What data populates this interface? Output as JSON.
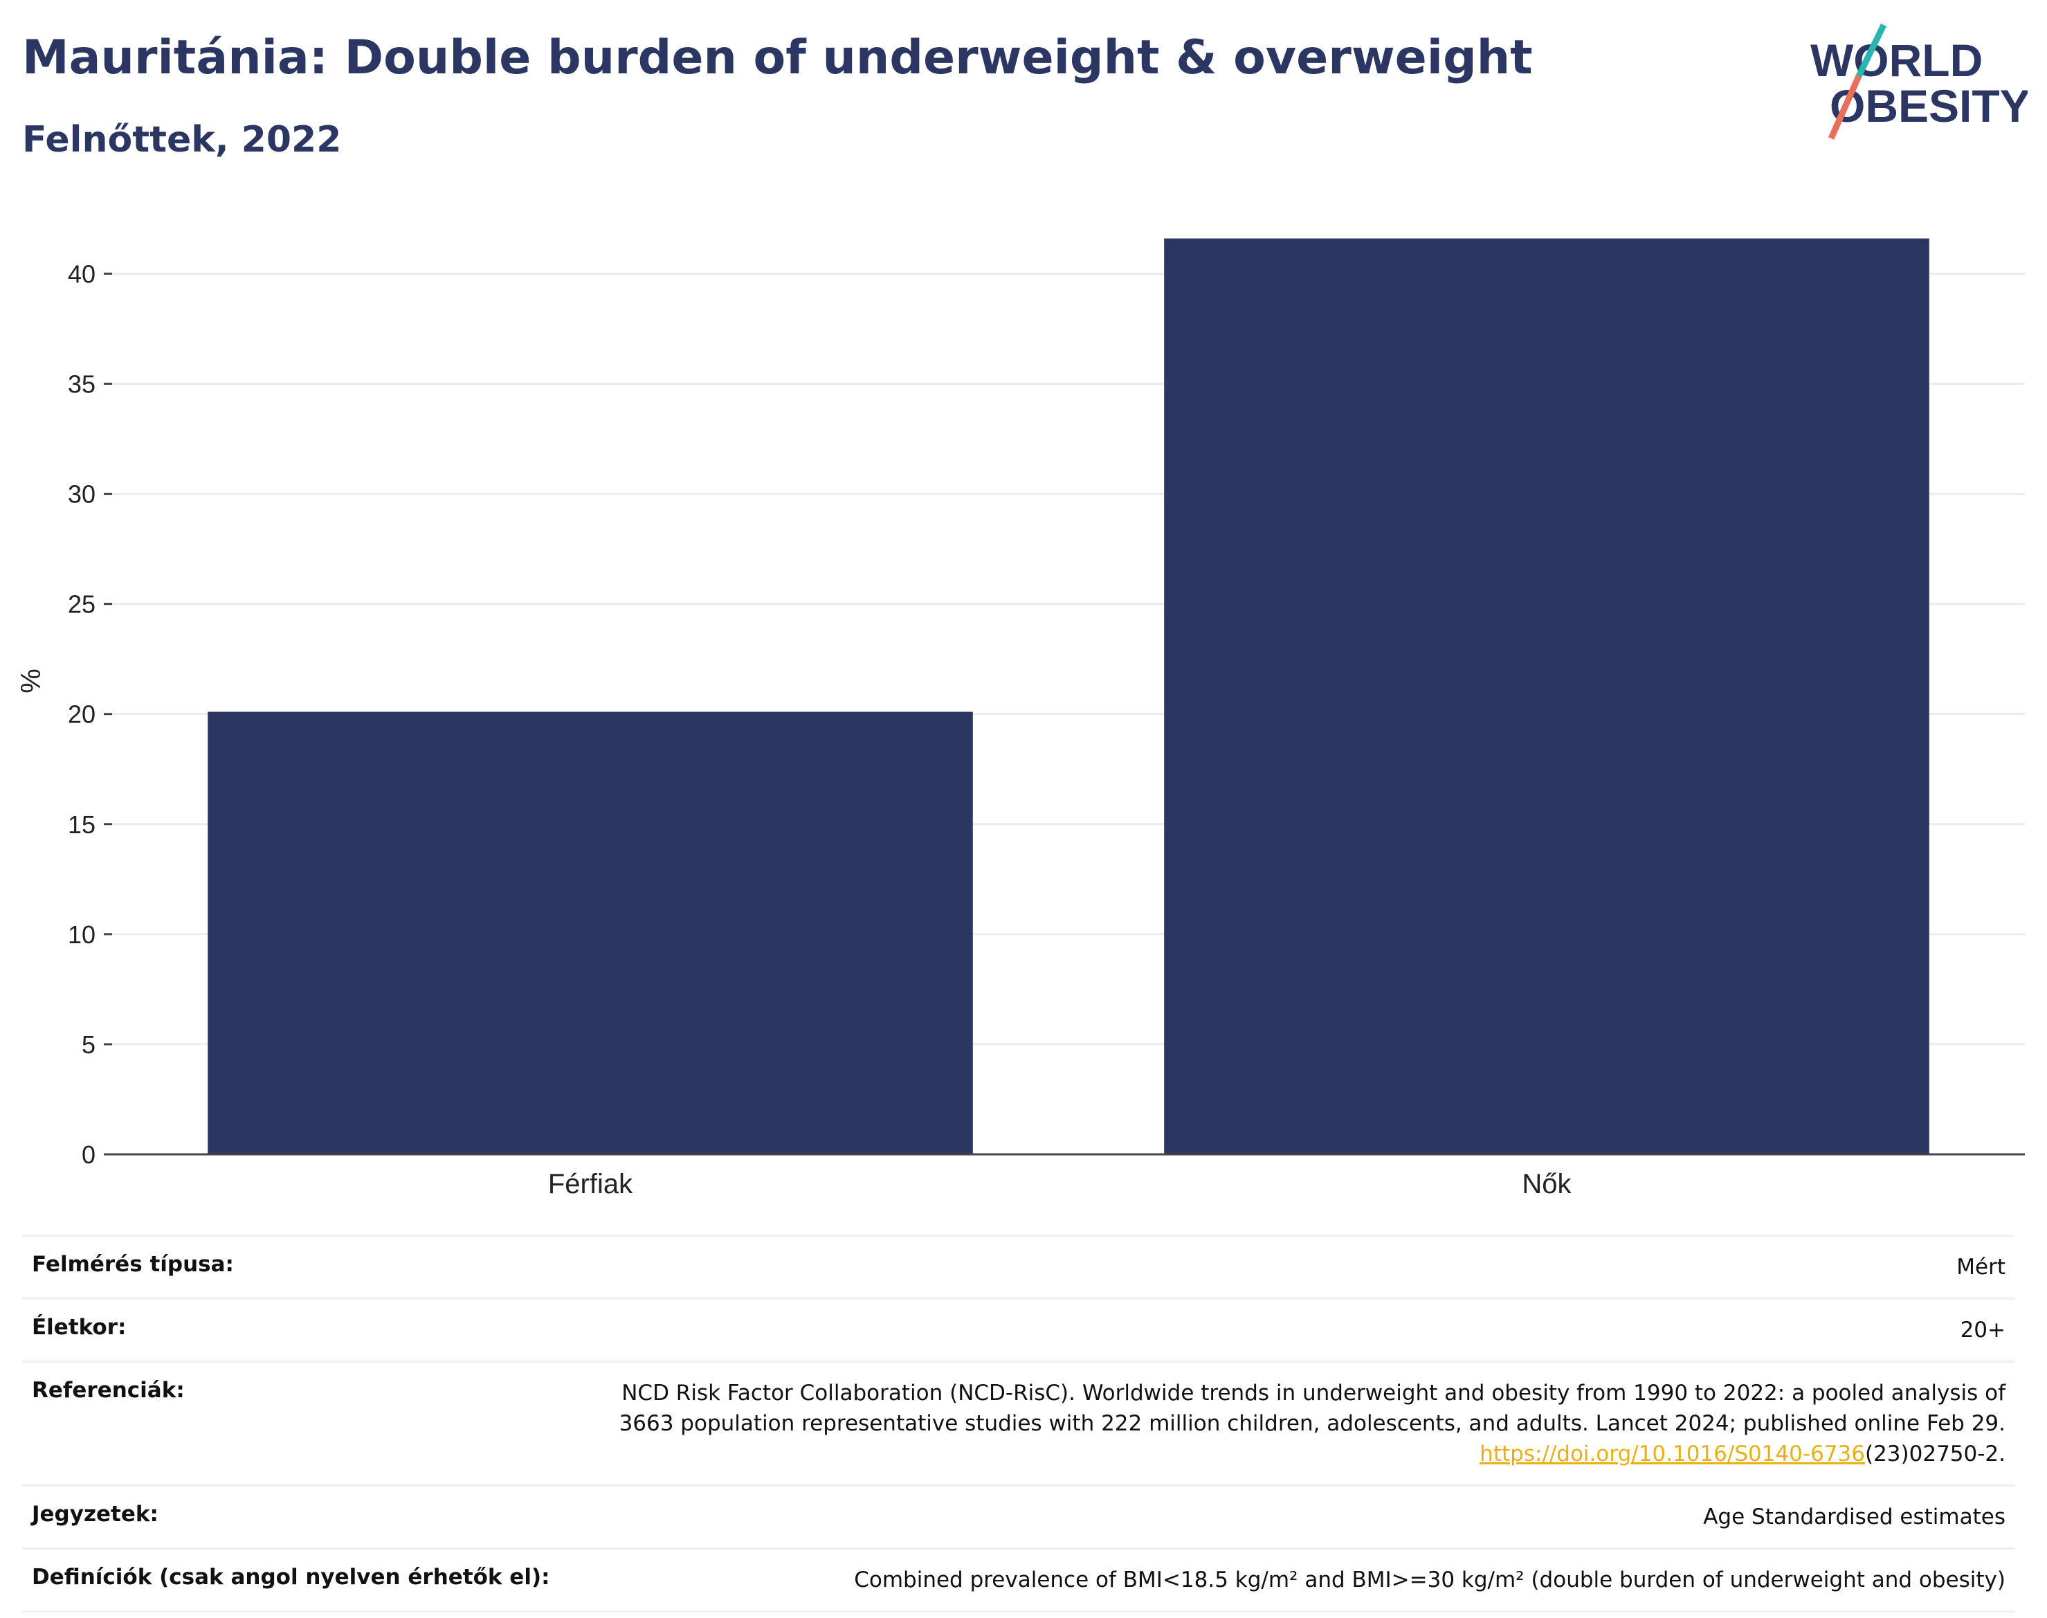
{
  "title": "Mauritánia: Double burden of underweight & overweight",
  "subtitle": "Felnőttek, 2022",
  "logo": {
    "line1": "WORLD",
    "line2": "OBESITY"
  },
  "chart_data": {
    "type": "bar",
    "categories": [
      "Férfiak",
      "Nők"
    ],
    "values": [
      20.1,
      41.6
    ],
    "ylabel": "%",
    "xlabel": "",
    "ylim": [
      0,
      43
    ],
    "yticks": [
      0,
      5,
      10,
      15,
      20,
      25,
      30,
      35,
      40
    ],
    "bar_color": "#2b3663",
    "grid": true
  },
  "info": {
    "survey_label": "Felmérés típusa:",
    "survey_value": "Mért",
    "age_label": "Életkor:",
    "age_value": "20+",
    "ref_label": "Referenciák:",
    "ref_line1": "NCD Risk Factor Collaboration (NCD-RisC). Worldwide trends in underweight and obesity from 1990 to 2022: a pooled analysis of",
    "ref_line2": "3663 population representative studies with 222 million children, adolescents, and adults. Lancet 2024; published online Feb 29.",
    "ref_link": "https://doi.org/10.1016/S0140-6736",
    "ref_tail": "(23)02750-2.",
    "notes_label": "Jegyzetek:",
    "notes_value": "Age Standardised estimates",
    "def_label": "Definíciók (csak angol nyelven érhetők el):",
    "def_value": "Combined prevalence of BMI<18.5 kg/m² and BMI>=30 kg/m² (double burden of underweight and obesity)"
  },
  "colors": {
    "title": "#2b3663",
    "bar": "#2b3663",
    "link": "#e8b013",
    "logo_teal": "#2bb5b2",
    "logo_coral": "#e8705a"
  }
}
